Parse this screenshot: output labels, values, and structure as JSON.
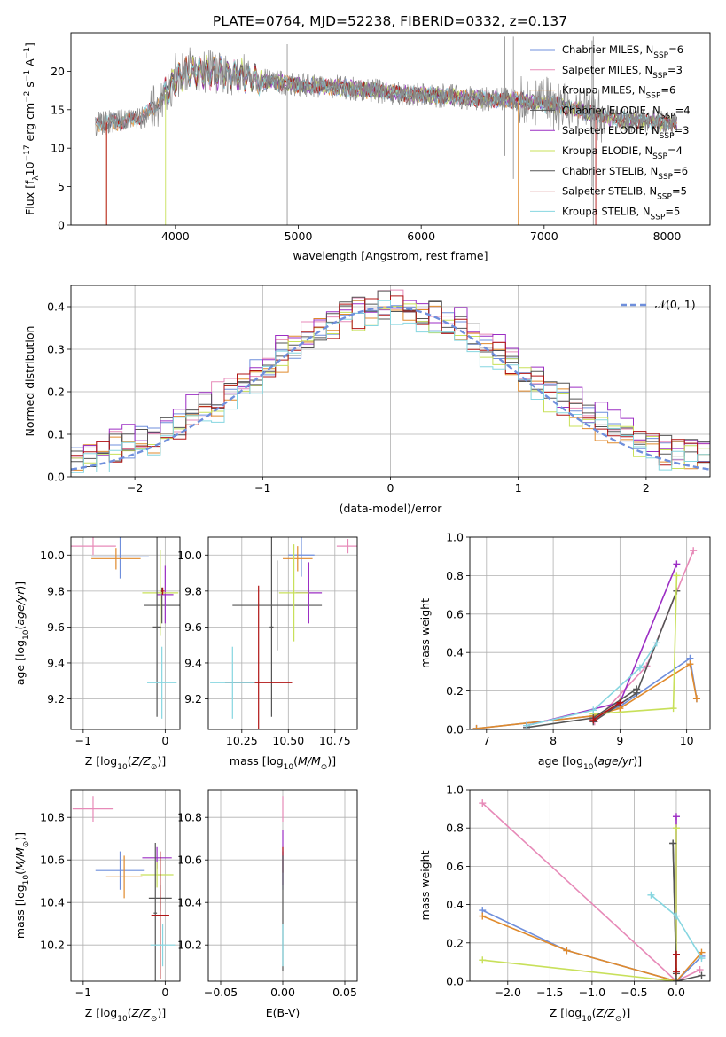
{
  "title": "PLATE=0764, MJD=52238, FIBERID=0332, z=0.137",
  "colors": {
    "Chabrier MILES": "#6f8fdc",
    "Salpeter MILES": "#e78ab8",
    "Kroupa MILES": "#e08a2c",
    "Chabrier ELODIE": "#555555",
    "Salpeter ELODIE": "#9c2ec4",
    "Kroupa ELODIE": "#c8e05a",
    "Chabrier STELIB": "#555555",
    "Salpeter STELIB": "#b01515",
    "Kroupa STELIB": "#86d6e0",
    "gaussian": "#6f8fdc"
  },
  "chart_data": [
    {
      "id": "spectrum",
      "type": "line",
      "xlabel": "wavelength [Angstrom, rest frame]",
      "ylabel": "Flux [f",
      "xlim": [
        3150,
        8350
      ],
      "ylim": [
        0,
        25
      ],
      "xticks": [
        4000,
        5000,
        6000,
        7000,
        8000
      ],
      "yticks": [
        0,
        5,
        10,
        15,
        20
      ],
      "legend_position": "right",
      "legend": [
        {
          "label": "Chabrier MILES, N_SSP=6",
          "model": "Chabrier MILES",
          "base": "Chabrier MILES, N",
          "nsub": "=6"
        },
        {
          "label": "Salpeter MILES, N_SSP=3",
          "model": "Salpeter MILES",
          "base": "Salpeter MILES, N",
          "nsub": "=3"
        },
        {
          "label": "Kroupa MILES, N_SSP=6",
          "model": "Kroupa MILES",
          "base": "Kroupa MILES, N",
          "nsub": "=6"
        },
        {
          "label": "Chabrier ELODIE, N_SSP=4",
          "model": "Chabrier ELODIE",
          "base": "Chabrier ELODIE, N",
          "nsub": "=4"
        },
        {
          "label": "Salpeter ELODIE, N_SSP=3",
          "model": "Salpeter ELODIE",
          "base": "Salpeter ELODIE, N",
          "nsub": "=3"
        },
        {
          "label": "Kroupa ELODIE, N_SSP=4",
          "model": "Kroupa ELODIE",
          "base": "Kroupa ELODIE, N",
          "nsub": "=4"
        },
        {
          "label": "Chabrier STELIB, N_SSP=6",
          "model": "Chabrier STELIB",
          "base": "Chabrier STELIB, N",
          "nsub": "=6"
        },
        {
          "label": "Salpeter STELIB, N_SSP=5",
          "model": "Salpeter STELIB",
          "base": "Salpeter STELIB, N",
          "nsub": "=5"
        },
        {
          "label": "Kroupa STELIB, N_SSP=5",
          "model": "Kroupa STELIB",
          "base": "Kroupa STELIB, N",
          "nsub": "=5"
        }
      ],
      "continuum_x": [
        3350,
        3600,
        3750,
        3900,
        4000,
        4100,
        4300,
        4500,
        4700,
        5000,
        5300,
        5600,
        5900,
        6200,
        6500,
        6800,
        7100,
        7400,
        7600,
        7800,
        8100
      ],
      "continuum_y": [
        13.2,
        13.5,
        14.2,
        16.5,
        19.0,
        20.0,
        19.8,
        19.5,
        18.8,
        18.2,
        18.0,
        17.5,
        17.0,
        16.8,
        16.4,
        16.2,
        15.6,
        14.5,
        13.8,
        13.5,
        13.2
      ],
      "noise_spikes": [
        {
          "x": 4910,
          "y_top": 23.5,
          "y_bottom": 0
        },
        {
          "x": 6750,
          "y_top": 24.5,
          "y_bottom": 6
        },
        {
          "x": 6680,
          "y_top": 24.5,
          "y_bottom": 9
        },
        {
          "x": 7390,
          "y_top": 24,
          "y_bottom": 5
        },
        {
          "x": 7400,
          "y_top": 24.5,
          "y_bottom": 0
        }
      ],
      "model_drops": [
        {
          "model": "Kroupa MILES",
          "x": 3440,
          "y_bottom": 0
        },
        {
          "model": "Kroupa ELODIE",
          "x": 3920,
          "y_bottom": 0
        },
        {
          "model": "Salpeter STELIB",
          "x": 3440,
          "y_bottom": 0
        },
        {
          "model": "Kroupa MILES",
          "x": 6790,
          "y_bottom": 0
        },
        {
          "model": "Salpeter STELIB",
          "x": 7420,
          "y_bottom": 0
        }
      ]
    },
    {
      "id": "residuals",
      "type": "line",
      "xlabel": "(data-model)/error",
      "ylabel": "Normed distribution",
      "xlim": [
        -2.5,
        2.5
      ],
      "ylim": [
        0,
        0.45
      ],
      "xticks": [
        -2,
        -1,
        0,
        1,
        2
      ],
      "yticks": [
        0.0,
        0.1,
        0.2,
        0.3,
        0.4
      ],
      "legend_position": "upper right",
      "legend": "𝒩(0, 1)",
      "gaussian": {
        "mean": 0,
        "sigma": 1
      },
      "bin_width": 0.1,
      "histograms": [
        {
          "model": "Chabrier MILES",
          "offset": 0.0
        },
        {
          "model": "Salpeter MILES",
          "offset": 0.012
        },
        {
          "model": "Kroupa MILES",
          "offset": -0.006
        },
        {
          "model": "Chabrier ELODIE",
          "offset": 0.004
        },
        {
          "model": "Salpeter ELODIE",
          "offset": 0.018
        },
        {
          "model": "Kroupa ELODIE",
          "offset": -0.012
        },
        {
          "model": "Chabrier STELIB",
          "offset": 0.008
        },
        {
          "model": "Salpeter STELIB",
          "offset": -0.004
        },
        {
          "model": "Kroupa STELIB",
          "offset": -0.015
        }
      ]
    },
    {
      "id": "age_vs_z",
      "type": "scatter",
      "xlabel": "Z [log",
      "ylabel": "age  [log",
      "xlim": [
        -1.15,
        0.18
      ],
      "ylim": [
        9.03,
        10.1
      ],
      "xticks": [
        -1,
        0
      ],
      "yticks": [
        9.2,
        9.4,
        9.6,
        9.8,
        10.0
      ],
      "points": [
        {
          "model": "Salpeter MILES",
          "x": -0.88,
          "y": 10.05,
          "xerr": 0.28,
          "yerr": 0.05
        },
        {
          "model": "Chabrier MILES",
          "x": -0.55,
          "y": 9.99,
          "xerr": 0.35,
          "yerr": 0.12
        },
        {
          "model": "Kroupa MILES",
          "x": -0.6,
          "y": 9.98,
          "xerr": 0.3,
          "yerr": 0.06
        },
        {
          "model": "Chabrier ELODIE",
          "x": -0.04,
          "y": 9.72,
          "xerr": 0.22,
          "yerr": 0.1
        },
        {
          "model": "Salpeter ELODIE",
          "x": 0.0,
          "y": 9.78,
          "xerr": 0.1,
          "yerr": 0.16
        },
        {
          "model": "Kroupa ELODIE",
          "x": -0.06,
          "y": 9.79,
          "xerr": 0.22,
          "yerr": 0.24
        },
        {
          "model": "Chabrier STELIB",
          "x": -0.1,
          "y": 9.6,
          "xerr": 0.05,
          "yerr": 0.5
        },
        {
          "model": "Salpeter STELIB",
          "x": -0.03,
          "y": 9.8,
          "xerr": 0.02,
          "yerr": 0.02
        },
        {
          "model": "Kroupa STELIB",
          "x": -0.04,
          "y": 9.29,
          "xerr": 0.18,
          "yerr": 0.2
        }
      ]
    },
    {
      "id": "age_vs_mass",
      "type": "scatter",
      "xlabel": "mass [log",
      "ylabel": "",
      "xlim": [
        10.07,
        10.87
      ],
      "ylim": [
        9.03,
        10.1
      ],
      "xticks": [
        10.25,
        10.5,
        10.75
      ],
      "xtick_labels": [
        "10.25",
        "10.50",
        "10.75"
      ],
      "yticks": [
        9.2,
        9.4,
        9.6,
        9.8,
        10.0
      ],
      "points": [
        {
          "model": "Salpeter MILES",
          "x": 10.82,
          "y": 10.05,
          "xerr": 0.06,
          "yerr": 0.04
        },
        {
          "model": "Chabrier MILES",
          "x": 10.57,
          "y": 10.0,
          "xerr": 0.07,
          "yerr": 0.12
        },
        {
          "model": "Kroupa MILES",
          "x": 10.55,
          "y": 9.98,
          "xerr": 0.08,
          "yerr": 0.07
        },
        {
          "model": "Chabrier ELODIE",
          "x": 10.44,
          "y": 9.72,
          "xerr": 0.24,
          "yerr": 0.25
        },
        {
          "model": "Salpeter ELODIE",
          "x": 10.61,
          "y": 9.79,
          "xerr": 0.07,
          "yerr": 0.17
        },
        {
          "model": "Kroupa ELODIE",
          "x": 10.53,
          "y": 9.79,
          "xerr": 0.08,
          "yerr": 0.27
        },
        {
          "model": "Chabrier STELIB",
          "x": 10.41,
          "y": 9.6,
          "xerr": 0.01,
          "yerr": 0.5
        },
        {
          "model": "Salpeter STELIB",
          "x": 10.34,
          "y": 9.29,
          "xerr": 0.18,
          "yerr": 0.54
        },
        {
          "model": "Kroupa STELIB",
          "x": 10.2,
          "y": 9.29,
          "xerr": 0.12,
          "yerr": 0.2
        }
      ]
    },
    {
      "id": "weight_vs_age",
      "type": "line",
      "xlabel": "age  [log",
      "ylabel": "mass weight",
      "xlim": [
        6.75,
        10.35
      ],
      "ylim": [
        0,
        1.0
      ],
      "xticks": [
        7,
        8,
        9,
        10
      ],
      "yticks": [
        0.0,
        0.2,
        0.4,
        0.6,
        0.8,
        1.0
      ],
      "series": [
        {
          "model": "Chabrier MILES",
          "x": [
            6.85,
            8.6,
            9.0,
            10.05,
            10.15
          ],
          "y": [
            0.005,
            0.07,
            0.12,
            0.37,
            0.16
          ]
        },
        {
          "model": "Salpeter MILES",
          "x": [
            8.62,
            9.4,
            10.1
          ],
          "y": [
            0.04,
            0.33,
            0.93
          ]
        },
        {
          "model": "Kroupa MILES",
          "x": [
            6.85,
            8.6,
            9.0,
            10.05,
            10.15
          ],
          "y": [
            0.005,
            0.07,
            0.11,
            0.34,
            0.16
          ]
        },
        {
          "model": "Chabrier ELODIE",
          "x": [
            8.6,
            9.25,
            9.85
          ],
          "y": [
            0.04,
            0.19,
            0.72
          ]
        },
        {
          "model": "Salpeter ELODIE",
          "x": [
            7.6,
            9.0,
            9.85
          ],
          "y": [
            0.02,
            0.14,
            0.86
          ]
        },
        {
          "model": "Kroupa ELODIE",
          "x": [
            8.6,
            9.8,
            9.85
          ],
          "y": [
            0.08,
            0.11,
            0.8
          ]
        },
        {
          "model": "Chabrier STELIB",
          "x": [
            7.6,
            8.6,
            9.25
          ],
          "y": [
            0.01,
            0.06,
            0.21
          ]
        },
        {
          "model": "Salpeter STELIB",
          "x": [
            8.6,
            9.0
          ],
          "y": [
            0.05,
            0.14
          ]
        },
        {
          "model": "Kroupa STELIB",
          "x": [
            7.6,
            8.6,
            9.3,
            9.55
          ],
          "y": [
            0.02,
            0.1,
            0.32,
            0.45
          ]
        }
      ]
    },
    {
      "id": "mass_vs_z",
      "type": "scatter",
      "xlabel": "Z [log",
      "ylabel": "mass [log",
      "xlim": [
        -1.15,
        0.18
      ],
      "ylim": [
        10.03,
        10.93
      ],
      "xticks": [
        -1,
        0
      ],
      "yticks": [
        10.2,
        10.4,
        10.6,
        10.8
      ],
      "points": [
        {
          "model": "Salpeter MILES",
          "x": -0.88,
          "y": 10.84,
          "xerr": 0.25,
          "yerr": 0.06
        },
        {
          "model": "Chabrier MILES",
          "x": -0.55,
          "y": 10.55,
          "xerr": 0.3,
          "yerr": 0.09
        },
        {
          "model": "Kroupa MILES",
          "x": -0.5,
          "y": 10.52,
          "xerr": 0.22,
          "yerr": 0.1
        },
        {
          "model": "Chabrier ELODIE",
          "x": -0.06,
          "y": 10.42,
          "xerr": 0.14,
          "yerr": 0.06
        },
        {
          "model": "Salpeter ELODIE",
          "x": -0.1,
          "y": 10.61,
          "xerr": 0.18,
          "yerr": 0.05
        },
        {
          "model": "Kroupa ELODIE",
          "x": -0.1,
          "y": 10.53,
          "xerr": 0.2,
          "yerr": 0.06
        },
        {
          "model": "Chabrier STELIB",
          "x": -0.12,
          "y": 10.35,
          "xerr": 0.02,
          "yerr": 0.33
        },
        {
          "model": "Salpeter STELIB",
          "x": -0.06,
          "y": 10.34,
          "xerr": 0.11,
          "yerr": 0.3
        },
        {
          "model": "Kroupa STELIB",
          "x": -0.03,
          "y": 10.2,
          "xerr": 0.15,
          "yerr": 0.1
        }
      ]
    },
    {
      "id": "mass_vs_ebv",
      "type": "scatter",
      "xlabel": "E(B-V)",
      "ylabel": "",
      "xlim": [
        -0.06,
        0.06
      ],
      "ylim": [
        10.03,
        10.93
      ],
      "xticks": [
        -0.05,
        0.0,
        0.05
      ],
      "xtick_labels": [
        "−0.05",
        "0.00",
        "0.05"
      ],
      "yticks": [
        10.2,
        10.4,
        10.6,
        10.8
      ],
      "points": [
        {
          "model": "Salpeter MILES",
          "x": 0.0,
          "y": 10.84,
          "xerr": 0.0,
          "yerr": 0.06
        },
        {
          "model": "Chabrier MILES",
          "x": 0.0,
          "y": 10.55,
          "xerr": 0.0,
          "yerr": 0.09
        },
        {
          "model": "Salpeter ELODIE",
          "x": 0.0,
          "y": 10.61,
          "xerr": 0.0,
          "yerr": 0.13
        },
        {
          "model": "Salpeter STELIB",
          "x": 0.0,
          "y": 10.6,
          "xerr": 0.0,
          "yerr": 0.06
        },
        {
          "model": "Chabrier STELIB",
          "x": 0.0,
          "y": 10.35,
          "xerr": 0.0,
          "yerr": 0.27
        },
        {
          "model": "Kroupa STELIB",
          "x": 0.0,
          "y": 10.2,
          "xerr": 0.0,
          "yerr": 0.1
        }
      ]
    },
    {
      "id": "weight_vs_z",
      "type": "line",
      "xlabel": "Z [log",
      "ylabel": "mass weight",
      "xlim": [
        -2.45,
        0.4
      ],
      "ylim": [
        0,
        1.0
      ],
      "xticks": [
        -2.0,
        -1.5,
        -1.0,
        -0.5,
        0.0
      ],
      "xtick_labels": [
        "−2.0",
        "−1.5",
        "−1.0",
        "−0.5",
        "0.0"
      ],
      "yticks": [
        0.0,
        0.2,
        0.4,
        0.6,
        0.8,
        1.0
      ],
      "series": [
        {
          "model": "Salpeter MILES",
          "x": [
            -2.3,
            0.0,
            0.28
          ],
          "y": [
            0.93,
            0.0,
            0.06
          ]
        },
        {
          "model": "Chabrier MILES",
          "x": [
            -2.3,
            -1.3,
            0.0,
            0.3
          ],
          "y": [
            0.37,
            0.16,
            0.0,
            0.13
          ]
        },
        {
          "model": "Kroupa MILES",
          "x": [
            -2.3,
            -1.3,
            0.0,
            0.3
          ],
          "y": [
            0.34,
            0.16,
            0.0,
            0.15
          ]
        },
        {
          "model": "Chabrier ELODIE",
          "x": [
            -0.04,
            0.0
          ],
          "y": [
            0.72,
            0.04
          ]
        },
        {
          "model": "Salpeter ELODIE",
          "x": [
            0.0,
            0.0
          ],
          "y": [
            0.86,
            0.14
          ]
        },
        {
          "model": "Kroupa ELODIE",
          "x": [
            -2.3,
            0.0,
            0.0
          ],
          "y": [
            0.11,
            0.0,
            0.8
          ]
        },
        {
          "model": "Chabrier STELIB",
          "x": [
            -0.04,
            0.0,
            0.3
          ],
          "y": [
            0.72,
            0.0,
            0.03
          ]
        },
        {
          "model": "Salpeter STELIB",
          "x": [
            0.0,
            0.0
          ],
          "y": [
            0.14,
            0.05
          ]
        },
        {
          "model": "Kroupa STELIB",
          "x": [
            -0.3,
            0.0,
            0.3
          ],
          "y": [
            0.45,
            0.34,
            0.12
          ]
        }
      ]
    }
  ]
}
